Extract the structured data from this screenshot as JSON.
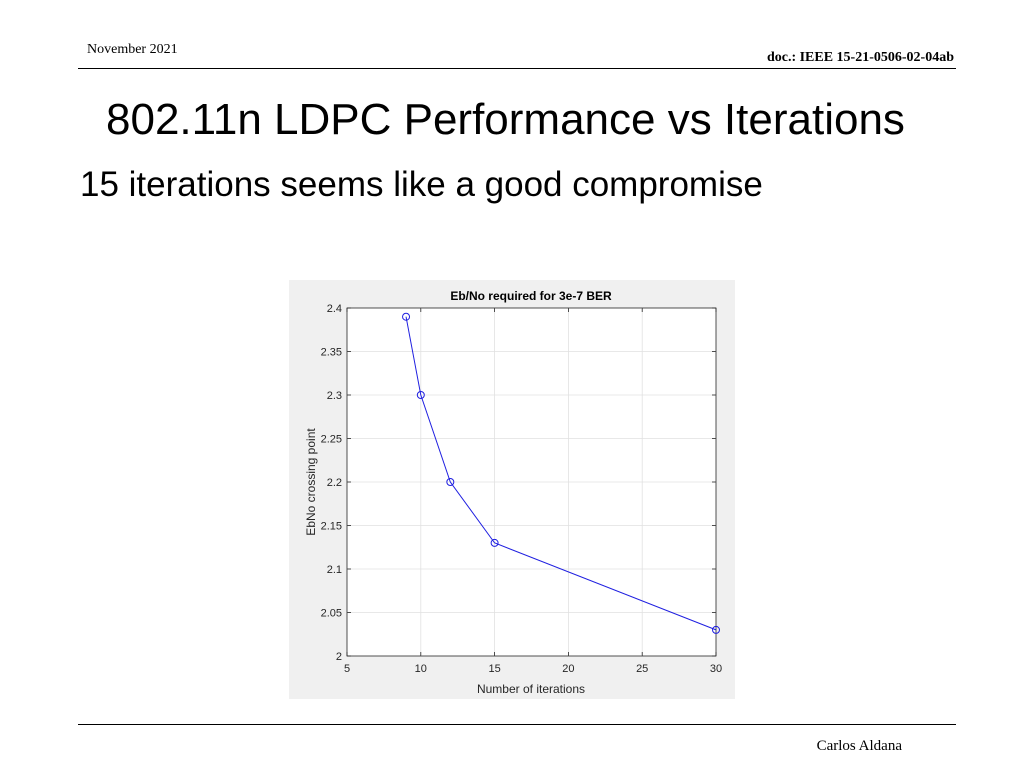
{
  "header": {
    "date": "November 2021",
    "doc": "doc.: IEEE 15-21-0506-02-04ab"
  },
  "slide": {
    "title": "802.11n LDPC Performance vs Iterations",
    "subtitle": "15 iterations seems like a good compromise"
  },
  "footer": {
    "author": "Carlos Aldana"
  },
  "chart_data": {
    "type": "line",
    "title": "Eb/No required for 3e-7 BER",
    "xlabel": "Number of iterations",
    "ylabel": "EbNo crossing point",
    "xlim": [
      5,
      30
    ],
    "ylim": [
      2,
      2.4
    ],
    "xticks": [
      5,
      10,
      15,
      20,
      25,
      30
    ],
    "yticks": [
      2,
      2.05,
      2.1,
      2.15,
      2.2,
      2.25,
      2.3,
      2.35,
      2.4
    ],
    "ytick_labels": [
      "2",
      "2.05",
      "2.1",
      "2.15",
      "2.2",
      "2.25",
      "2.3",
      "2.35",
      "2.4"
    ],
    "grid": true,
    "marker": "circle",
    "series_color": "#1f1fe0",
    "series": [
      {
        "x": [
          9,
          10,
          12,
          15,
          30
        ],
        "values": [
          2.39,
          2.3,
          2.2,
          2.13,
          2.03
        ]
      }
    ]
  }
}
